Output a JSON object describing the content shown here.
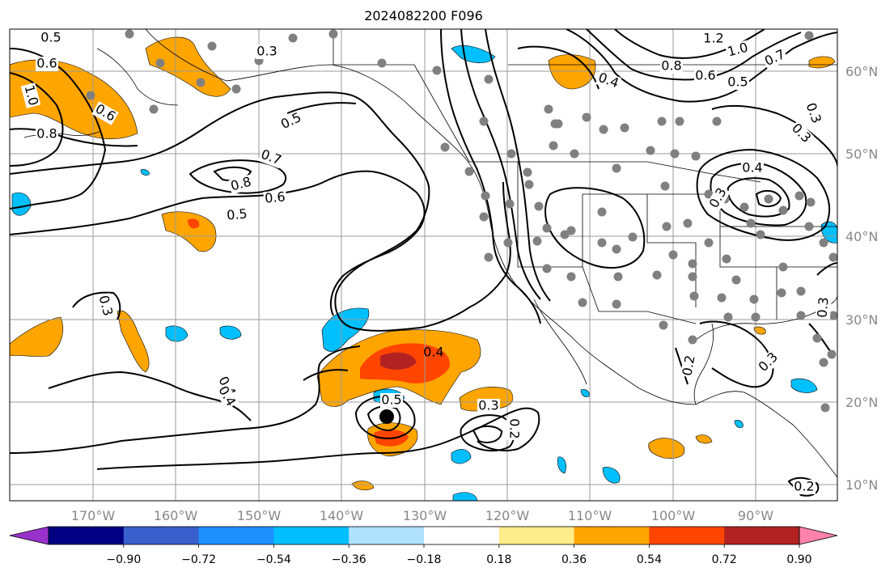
{
  "title": "2024082200 F096",
  "map": {
    "lon_ticks": [
      "170°W",
      "160°W",
      "150°W",
      "140°W",
      "130°W",
      "120°W",
      "110°W",
      "100°W",
      "90°W"
    ],
    "lat_ticks": [
      "60°N",
      "50°N",
      "40°N",
      "30°N",
      "20°N",
      "10°N"
    ],
    "contour_labels": [
      "0.5",
      "0.3",
      "1.2",
      "1.0",
      "0.7",
      "0.8",
      "0.6",
      "0.5",
      "0.4",
      "0.6",
      "0.3",
      "0.4",
      "0.5",
      "0.7",
      "0.8",
      "0.6",
      "0.5",
      "1.0",
      "0.6",
      "0.8",
      "0.3",
      "0.3",
      "0.4",
      "0.3",
      "0.4",
      "0.5",
      "0.3",
      "0.2",
      "0.3",
      "0.3",
      "0.2",
      "0.2"
    ],
    "colors": {
      "orange": "#ffa500",
      "red": "#ff4500",
      "darkred": "#b22222",
      "lightblue": "#00bfff",
      "dots": "#808080"
    }
  },
  "colorbar": {
    "colors": [
      "#9932cc",
      "#000080",
      "#3a5fcd",
      "#1e90ff",
      "#00bfff",
      "#b0e2ff",
      "#ffffff",
      "#ffec8b",
      "#ffa500",
      "#ff4500",
      "#b22222",
      "#ff82ab"
    ],
    "ticks": [
      "−0.90",
      "−0.72",
      "−0.54",
      "−0.36",
      "−0.18",
      "0.18",
      "0.36",
      "0.54",
      "0.72",
      "0.90"
    ]
  }
}
